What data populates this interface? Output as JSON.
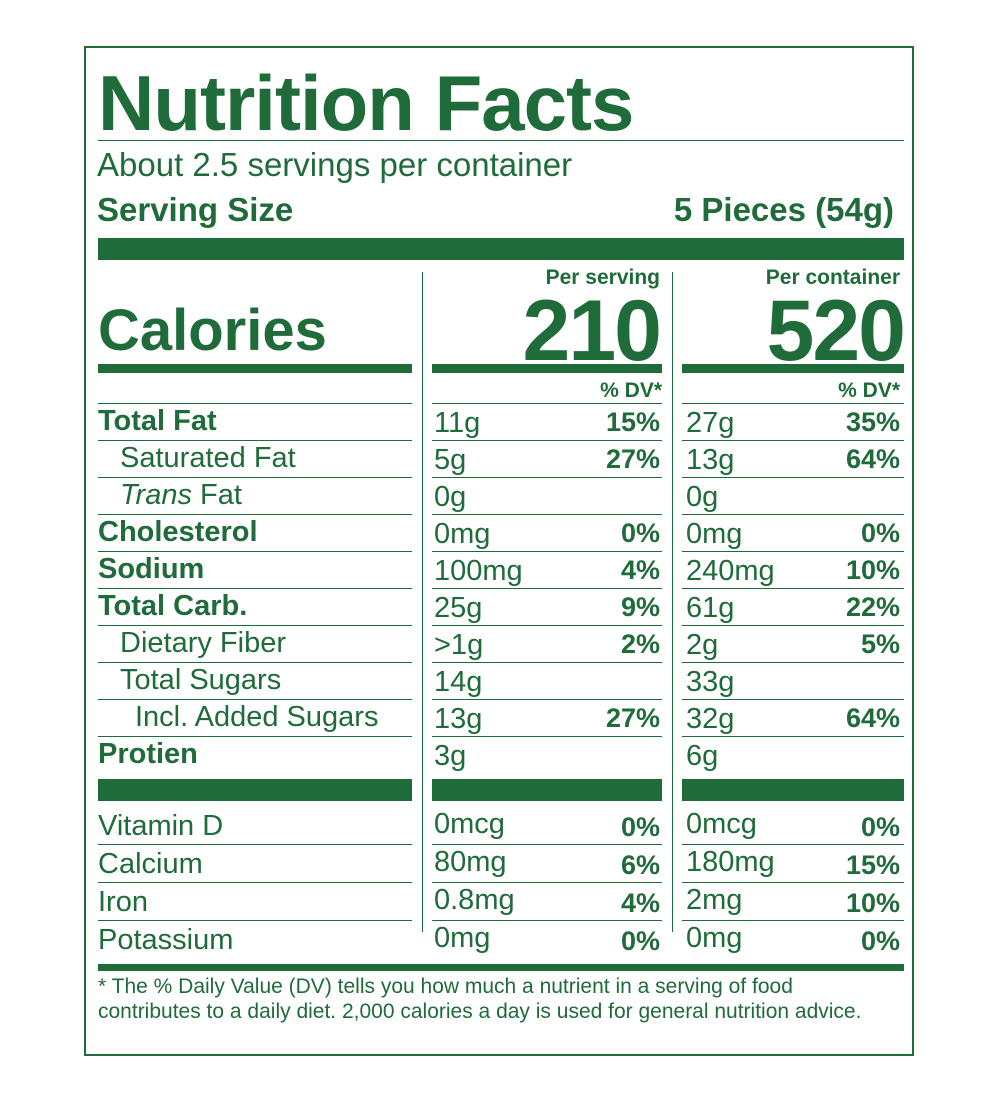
{
  "title": "Nutrition Facts",
  "servings_per_container": "About 2.5 servings per container",
  "serving_size": {
    "label": "Serving Size",
    "value": "5 Pieces (54g)"
  },
  "calories": {
    "label": "Calories",
    "per_serving_heading": "Per serving",
    "per_serving_value": "210",
    "per_container_heading": "Per container",
    "per_container_value": "520"
  },
  "dv_heading": "% DV*",
  "nutrients": [
    {
      "label": "Total Fat",
      "bold": true,
      "indent": 0,
      "serving_amount": "11g",
      "serving_dv": "15%",
      "container_amount": "27g",
      "container_dv": "35%"
    },
    {
      "label": "Saturated Fat",
      "bold": false,
      "indent": 1,
      "serving_amount": "5g",
      "serving_dv": "27%",
      "container_amount": "13g",
      "container_dv": "64%"
    },
    {
      "label_italic": "Trans",
      "label": " Fat",
      "bold": false,
      "indent": 1,
      "serving_amount": "0g",
      "serving_dv": "",
      "container_amount": "0g",
      "container_dv": ""
    },
    {
      "label": "Cholesterol",
      "bold": true,
      "indent": 0,
      "serving_amount": "0mg",
      "serving_dv": "0%",
      "container_amount": "0mg",
      "container_dv": "0%"
    },
    {
      "label": "Sodium",
      "bold": true,
      "indent": 0,
      "serving_amount": "100mg",
      "serving_dv": "4%",
      "container_amount": "240mg",
      "container_dv": "10%"
    },
    {
      "label": "Total Carb.",
      "bold": true,
      "indent": 0,
      "serving_amount": "25g",
      "serving_dv": "9%",
      "container_amount": "61g",
      "container_dv": "22%"
    },
    {
      "label": "Dietary Fiber",
      "bold": false,
      "indent": 1,
      "serving_amount": ">1g",
      "serving_dv": "2%",
      "container_amount": "2g",
      "container_dv": "5%"
    },
    {
      "label": "Total Sugars",
      "bold": false,
      "indent": 1,
      "serving_amount": "14g",
      "serving_dv": "",
      "container_amount": "33g",
      "container_dv": ""
    },
    {
      "label": "Incl. Added Sugars",
      "bold": false,
      "indent": 2,
      "serving_amount": "13g",
      "serving_dv": "27%",
      "container_amount": "32g",
      "container_dv": "64%"
    },
    {
      "label": "Protien",
      "bold": true,
      "indent": 0,
      "serving_amount": "3g",
      "serving_dv": "",
      "container_amount": "6g",
      "container_dv": ""
    }
  ],
  "vitamins": [
    {
      "label": "Vitamin D",
      "serving_amount": "0mcg",
      "serving_dv": "0%",
      "container_amount": "0mcg",
      "container_dv": "0%"
    },
    {
      "label": "Calcium",
      "serving_amount": "80mg",
      "serving_dv": "6%",
      "container_amount": "180mg",
      "container_dv": "15%"
    },
    {
      "label": "Iron",
      "serving_amount": "0.8mg",
      "serving_dv": "4%",
      "container_amount": "2mg",
      "container_dv": "10%"
    },
    {
      "label": "Potassium",
      "serving_amount": "0mg",
      "serving_dv": "0%",
      "container_amount": "0mg",
      "container_dv": "0%"
    }
  ],
  "footnote": "* The % Daily Value (DV) tells you how much a nutrient in a serving of food contributes to a daily diet. 2,000 calories a day is used for general nutrition advice.",
  "colors": {
    "ink": "#1f6b3a",
    "background": "#ffffff"
  }
}
